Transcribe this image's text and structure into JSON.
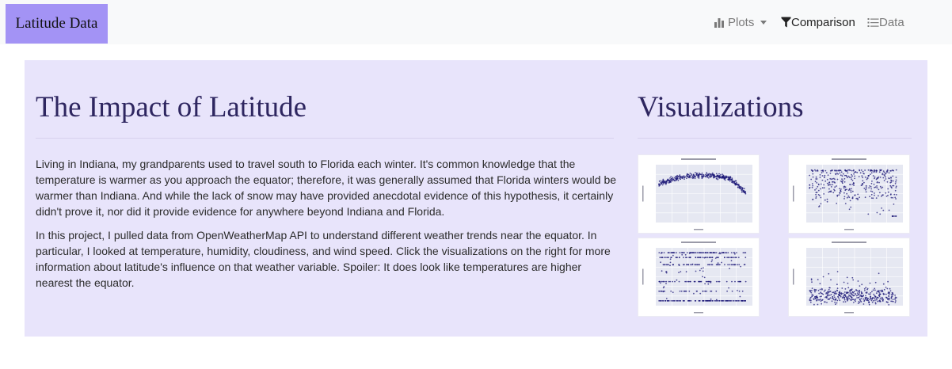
{
  "navbar": {
    "brand": "Latitude Data",
    "plots_label": "Plots",
    "comparison_label": "Comparison",
    "data_label": "Data"
  },
  "main": {
    "title": "The Impact of Latitude",
    "paragraphs": [
      "Living in Indiana, my grandparents used to travel south to Florida each winter. It's common knowledge that the temperature is warmer as you approach the equator; therefore, it was generally assumed that Florida winters would be warmer than Indiana. And while the lack of snow may have provided anecdotal evidence of this hypothesis, it certainly didn't prove it, nor did it provide evidence for anywhere beyond Indiana and Florida.",
      "In this project, I pulled data from OpenWeatherMap API to understand different weather trends near the equator. In particular, I looked at temperature, humidity, cloudiness, and wind speed. Click the visualizations on the right for more information about latitude's influence on that weather variable. Spoiler: It does look like temperatures are higher nearest the equator."
    ]
  },
  "sidebar": {
    "title": "Visualizations"
  },
  "colors": {
    "brand_bg": "#a393f5",
    "jumbotron_bg": "#e8e4fb",
    "heading": "#2e2660",
    "plot_bg": "#e6e8f2",
    "point": "#1e1a78"
  },
  "icons": {
    "plots": "bar-chart-icon",
    "comparison": "filter-icon",
    "data": "list-icon"
  },
  "chart_data": [
    {
      "type": "scatter",
      "pattern": "max-temperature",
      "xlim": [
        -60,
        90
      ],
      "ylim": [
        -20,
        110
      ],
      "grid": true
    },
    {
      "type": "scatter",
      "pattern": "humidity",
      "xlim": [
        -60,
        90
      ],
      "ylim": [
        0,
        110
      ],
      "grid": true
    },
    {
      "type": "scatter",
      "pattern": "cloudiness",
      "xlim": [
        -60,
        90
      ],
      "ylim": [
        -10,
        110
      ],
      "grid": true
    },
    {
      "type": "scatter",
      "pattern": "wind-speed",
      "xlim": [
        -60,
        90
      ],
      "ylim": [
        0,
        45
      ],
      "grid": true
    }
  ]
}
